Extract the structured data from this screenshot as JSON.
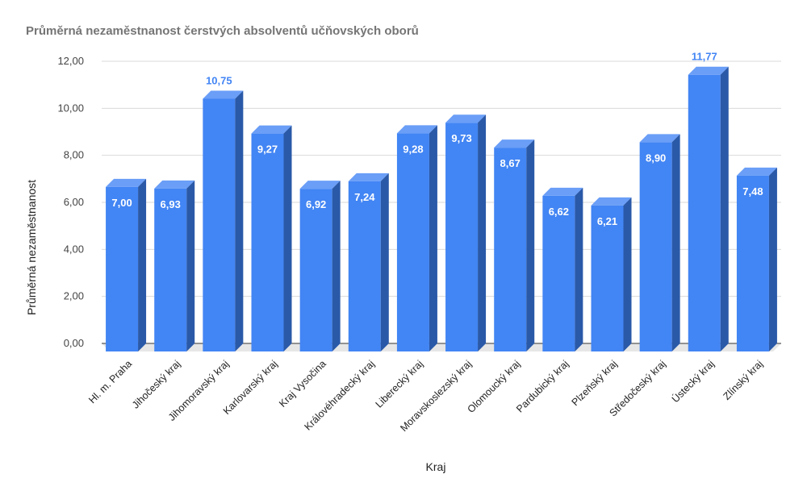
{
  "chart_data": {
    "type": "bar",
    "title": "Průměrná nezaměstnanost čerstvých absolventů učňovských oborů",
    "xlabel": "Kraj",
    "ylabel": "Průměrná nezaměstnanost",
    "ylim": [
      0,
      12
    ],
    "yticks": [
      "0,00",
      "2,00",
      "4,00",
      "6,00",
      "8,00",
      "10,00",
      "12,00"
    ],
    "grid": true,
    "categories": [
      "Hl. m. Praha",
      "Jihočeský kraj",
      "Jihomoravský kraj",
      "Karlovarský kraj",
      "Kraj Vysočina",
      "Královéhradecký kraj",
      "Liberecký kraj",
      "Moravskoslezský kraj",
      "Olomoucký kraj",
      "Pardubický kraj",
      "Plzeňský kraj",
      "Středočeský kraj",
      "Ústecký kraj",
      "Zlínský kraj"
    ],
    "values": [
      7.0,
      6.93,
      10.75,
      9.27,
      6.92,
      7.24,
      9.28,
      9.73,
      8.67,
      6.62,
      6.21,
      8.9,
      11.77,
      7.48
    ],
    "value_labels": [
      "7,00",
      "6,93",
      "10,75",
      "9,27",
      "6,92",
      "7,24",
      "9,28",
      "9,73",
      "8,67",
      "6,62",
      "6,21",
      "8,90",
      "11,77",
      "7,48"
    ],
    "colors": {
      "bar_front": "#4285f4",
      "bar_top": "#6a9ef7",
      "bar_side": "#2a59a8",
      "label_inside": "#ffffff",
      "label_outside": "#4285f4",
      "grid": "#d9d9d9",
      "floor": "#e6e6e6"
    }
  }
}
